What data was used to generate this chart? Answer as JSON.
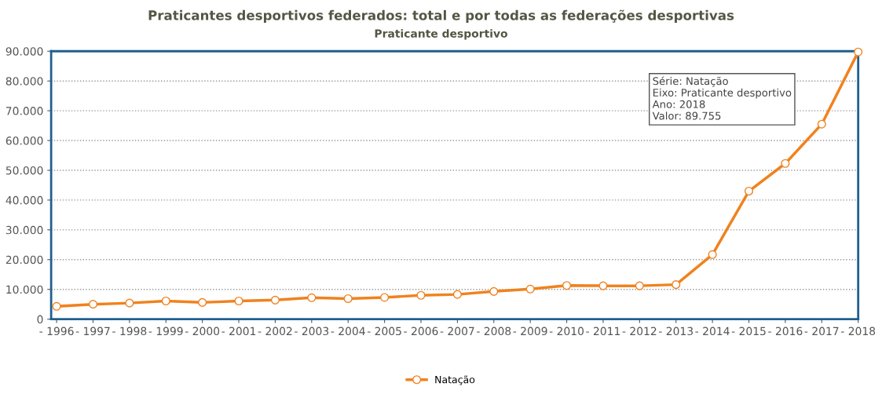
{
  "chart_data": {
    "type": "line",
    "title": "Praticantes desportivos federados: total e por todas as federações desportivas",
    "subtitle": "Praticante desportivo",
    "categories": [
      "- 1996",
      "- 1997",
      "- 1998",
      "- 1999",
      "- 2000",
      "- 2001",
      "- 2002",
      "- 2003",
      "- 2004",
      "- 2005",
      "- 2006",
      "- 2007",
      "- 2008",
      "- 2009",
      "- 2010",
      "- 2011",
      "- 2012",
      "- 2013",
      "- 2014",
      "- 2015",
      "- 2016",
      "- 2017",
      "- 2018"
    ],
    "series": [
      {
        "name": "Natação",
        "color": "#f0821e",
        "values": [
          4300,
          5000,
          5400,
          6100,
          5600,
          6100,
          6400,
          7200,
          6900,
          7300,
          8000,
          8300,
          9300,
          10100,
          11300,
          11200,
          11200,
          11600,
          21700,
          43000,
          52300,
          65500,
          89755
        ]
      }
    ],
    "ylim": [
      0,
      90000
    ],
    "yticks": [
      {
        "value": 0,
        "label": "0"
      },
      {
        "value": 10000,
        "label": "10.000"
      },
      {
        "value": 20000,
        "label": "20.000"
      },
      {
        "value": 30000,
        "label": "30.000"
      },
      {
        "value": 40000,
        "label": "40.000"
      },
      {
        "value": 50000,
        "label": "50.000"
      },
      {
        "value": 60000,
        "label": "60.000"
      },
      {
        "value": 70000,
        "label": "70.000"
      },
      {
        "value": 80000,
        "label": "80.000"
      },
      {
        "value": 90000,
        "label": "90.000"
      }
    ],
    "annotations": [
      "Série: Natação\nEixo: Praticante desportivo\nAno: 2018\nValor: 89.755"
    ],
    "grid": "y",
    "legend": "bottom",
    "marker": "circle",
    "line_style": "solid"
  }
}
